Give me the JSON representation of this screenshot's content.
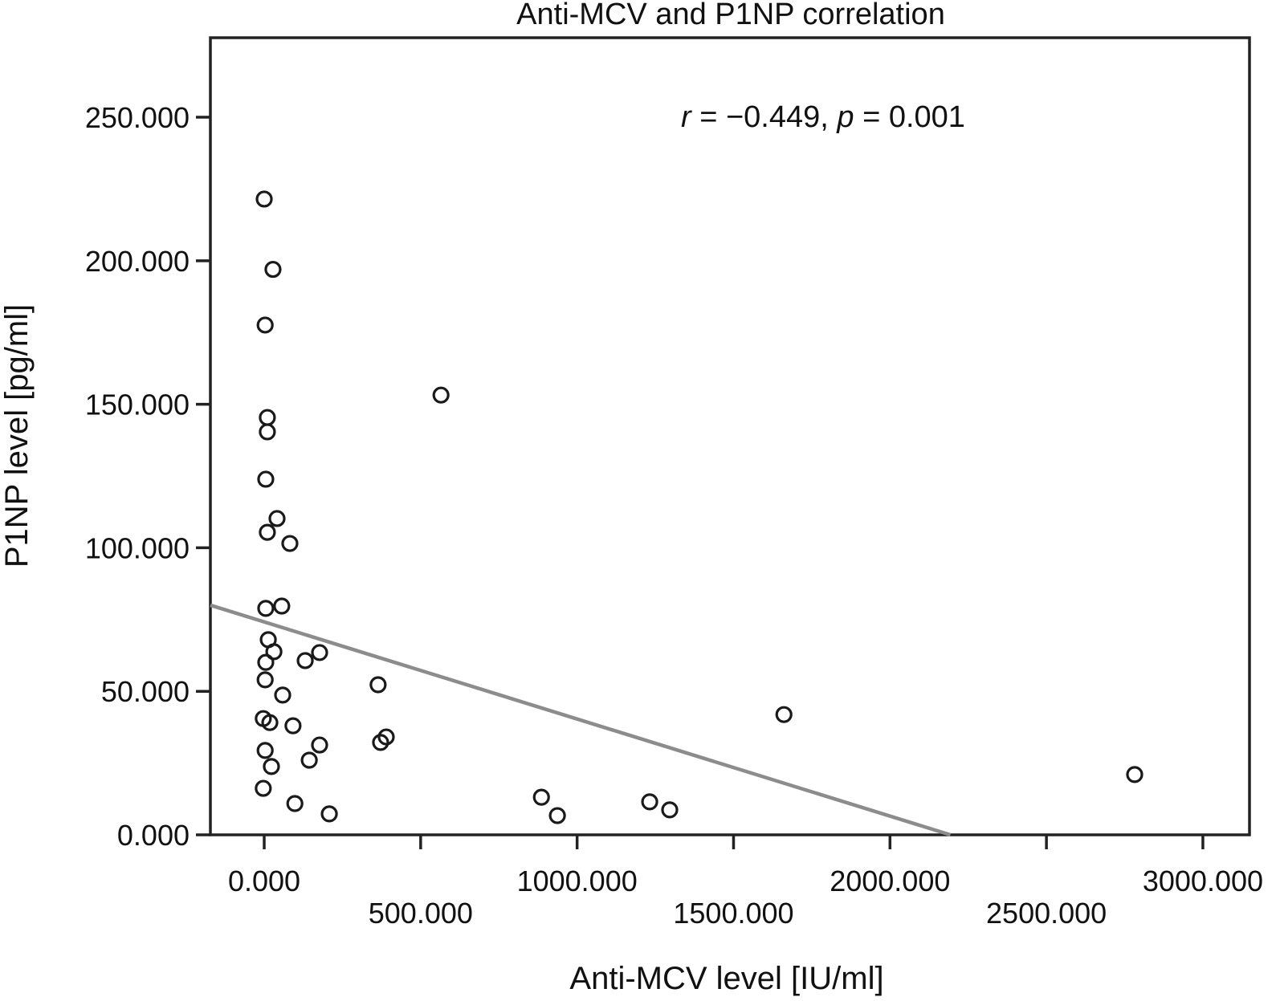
{
  "chart_data": {
    "type": "scatter",
    "title": "Anti-MCV and P1NP correlation",
    "xlabel": "Anti-MCV level [IU/ml]",
    "ylabel": "P1NP level [pg/ml]",
    "annotation": {
      "r_symbol": "r",
      "r_text": " = −0.449, ",
      "p_symbol": "p",
      "p_text": " = 0.001",
      "r": -0.449,
      "p": 0.001,
      "placement": "top-right"
    },
    "xlim": [
      -172,
      3149
    ],
    "ylim": [
      0,
      277.7
    ],
    "grid": false,
    "legend": "none",
    "x_ticks": [
      {
        "value": 0,
        "label": "0.000"
      },
      {
        "value": 500,
        "label": "500.000"
      },
      {
        "value": 1000,
        "label": "1000.000"
      },
      {
        "value": 1500,
        "label": "1500.000"
      },
      {
        "value": 2000,
        "label": "2000.000"
      },
      {
        "value": 2500,
        "label": "2500.000"
      },
      {
        "value": 3000,
        "label": "3000.000"
      }
    ],
    "y_ticks": [
      {
        "value": 0,
        "label": "0.000"
      },
      {
        "value": 50,
        "label": "50.000"
      },
      {
        "value": 100,
        "label": "100.000"
      },
      {
        "value": 150,
        "label": "150.000"
      },
      {
        "value": 200,
        "label": "200.000"
      },
      {
        "value": 250,
        "label": "250.000"
      }
    ],
    "points": [
      {
        "x": 0,
        "y": 221.5
      },
      {
        "x": 28,
        "y": 197.0
      },
      {
        "x": 3,
        "y": 177.6
      },
      {
        "x": 10,
        "y": 145.4
      },
      {
        "x": 10,
        "y": 140.4
      },
      {
        "x": 5,
        "y": 123.9
      },
      {
        "x": 41,
        "y": 110.2
      },
      {
        "x": 10,
        "y": 105.4
      },
      {
        "x": 82,
        "y": 101.5
      },
      {
        "x": 5,
        "y": 78.9
      },
      {
        "x": 56,
        "y": 79.7
      },
      {
        "x": 13,
        "y": 68.0
      },
      {
        "x": 31,
        "y": 63.8
      },
      {
        "x": 5,
        "y": 60.1
      },
      {
        "x": 131,
        "y": 60.7
      },
      {
        "x": 177,
        "y": 63.5
      },
      {
        "x": 3,
        "y": 54.0
      },
      {
        "x": 59,
        "y": 48.7
      },
      {
        "x": 364,
        "y": 52.3
      },
      {
        "x": -3,
        "y": 40.5
      },
      {
        "x": 18,
        "y": 39.1
      },
      {
        "x": 92,
        "y": 38.0
      },
      {
        "x": 390,
        "y": 34.1
      },
      {
        "x": 372,
        "y": 32.2
      },
      {
        "x": 177,
        "y": 31.3
      },
      {
        "x": 3,
        "y": 29.4
      },
      {
        "x": 23,
        "y": 23.8
      },
      {
        "x": 144,
        "y": 26.0
      },
      {
        "x": -3,
        "y": 16.2
      },
      {
        "x": 98,
        "y": 10.9
      },
      {
        "x": 208,
        "y": 7.3
      },
      {
        "x": 565,
        "y": 153.2
      },
      {
        "x": 1661,
        "y": 41.9
      },
      {
        "x": 886,
        "y": 13.1
      },
      {
        "x": 937,
        "y": 6.7
      },
      {
        "x": 1232,
        "y": 11.5
      },
      {
        "x": 1296,
        "y": 8.7
      },
      {
        "x": 2782,
        "y": 21.0
      }
    ],
    "fit_line": {
      "x_start": -172,
      "y_start": 80.0,
      "x_end": 2193,
      "y_end": 0.0
    }
  }
}
